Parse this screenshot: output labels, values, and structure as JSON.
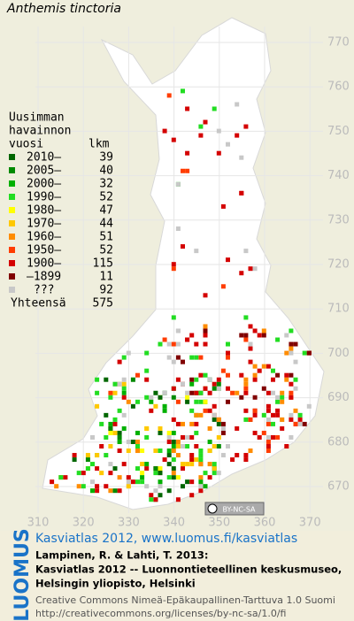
{
  "title": "Anthemis tinctoria",
  "legend": {
    "heading": [
      "Uusimman",
      "havainnon"
    ],
    "col_year": "vuosi",
    "col_count": "lkm",
    "rows": [
      {
        "label": "2010–",
        "count": 39,
        "color": "#006600"
      },
      {
        "label": "2005–",
        "count": 40,
        "color": "#008a00"
      },
      {
        "label": "2000–",
        "count": 32,
        "color": "#00b000"
      },
      {
        "label": "1990–",
        "count": 52,
        "color": "#22dd22"
      },
      {
        "label": "1980–",
        "count": 47,
        "color": "#ffff00"
      },
      {
        "label": "1970–",
        "count": 44,
        "color": "#ffc800"
      },
      {
        "label": "1960–",
        "count": 51,
        "color": "#ff8c00"
      },
      {
        "label": "1950–",
        "count": 52,
        "color": "#ff3c00"
      },
      {
        "label": "1900–",
        "count": 115,
        "color": "#d40000"
      },
      {
        "label": "–1899",
        "count": 11,
        "color": "#800000"
      },
      {
        "label": "???",
        "count": 92,
        "color": "#c8c8c8"
      }
    ],
    "total_label": "Yhteensä",
    "total": 575
  },
  "axes": {
    "y_labels": [
      770,
      760,
      750,
      740,
      730,
      720,
      710,
      700,
      690,
      680,
      670
    ],
    "x_labels": [
      310,
      320,
      330,
      340,
      350,
      360,
      370
    ]
  },
  "badge": "BY-NC-SA",
  "footer": {
    "logo": "LUOMUS",
    "link": "Kasviatlas 2012, www.luomus.fi/kasviatlas",
    "citation": [
      "Lampinen, R. & Lahti, T. 2013:",
      "Kasviatlas 2012 -- Luonnontieteellinen keskusmuseo,",
      "Helsingin yliopisto, Helsinki"
    ],
    "license": [
      "Creative Commons Nimeä-Epäkaupallinen-Tarttuva 1.0 Suomi",
      "http://creativecommons.org/licenses/by-nc-sa/1.0/fi"
    ]
  }
}
